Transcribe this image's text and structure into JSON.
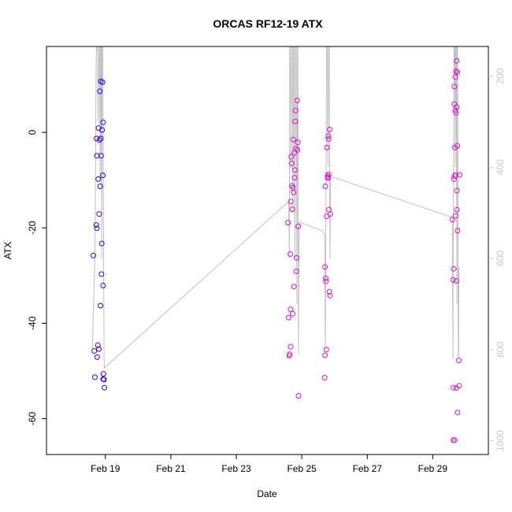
{
  "chart_data": {
    "type": "scatter",
    "title": "ORCAS RF12-19 ATX",
    "xlabel": "Date",
    "ylabel": "ATX",
    "x_ticks": [
      "Feb 19",
      "Feb 21",
      "Feb 23",
      "Feb 25",
      "Feb 27",
      "Feb 29"
    ],
    "x_tick_days": [
      19,
      21,
      23,
      25,
      27,
      29
    ],
    "xlim_days": [
      17.2,
      30.7
    ],
    "ylim": [
      -67.5,
      18
    ],
    "y_ticks": [
      0,
      -20,
      -40,
      -60
    ],
    "right_axis": {
      "label": "",
      "color": "#c8c8c8",
      "ticks": [
        200,
        400,
        600,
        800,
        1000
      ],
      "lim": [
        1030,
        135
      ]
    },
    "points": [
      {
        "x": 18.63,
        "y": -25.8
      },
      {
        "x": 18.66,
        "y": -45.8
      },
      {
        "x": 18.68,
        "y": -51.3
      },
      {
        "x": 18.72,
        "y": -19.4
      },
      {
        "x": 18.73,
        "y": -1.3
      },
      {
        "x": 18.74,
        "y": -4.9
      },
      {
        "x": 18.74,
        "y": -20.1
      },
      {
        "x": 18.75,
        "y": -47.1
      },
      {
        "x": 18.77,
        "y": -44.6
      },
      {
        "x": 18.78,
        "y": -9.8
      },
      {
        "x": 18.79,
        "y": 0.9
      },
      {
        "x": 18.8,
        "y": -45.4
      },
      {
        "x": 18.81,
        "y": -17.1
      },
      {
        "x": 18.82,
        "y": -1.6
      },
      {
        "x": 18.83,
        "y": 8.6
      },
      {
        "x": 18.84,
        "y": -11.3
      },
      {
        "x": 18.85,
        "y": -36.3
      },
      {
        "x": 18.86,
        "y": -1.3
      },
      {
        "x": 18.86,
        "y": 10.7
      },
      {
        "x": 18.87,
        "y": -4.9
      },
      {
        "x": 18.88,
        "y": -29.7
      },
      {
        "x": 18.89,
        "y": -23.3
      },
      {
        "x": 18.9,
        "y": 0.5
      },
      {
        "x": 18.91,
        "y": 10.5
      },
      {
        "x": 18.92,
        "y": -9.0
      },
      {
        "x": 18.93,
        "y": 2.1
      },
      {
        "x": 18.93,
        "y": -32.1
      },
      {
        "x": 18.93,
        "y": -51.7
      },
      {
        "x": 18.94,
        "y": -50.6
      },
      {
        "x": 18.96,
        "y": -51.8
      },
      {
        "x": 18.97,
        "y": -53.5
      },
      {
        "x": 24.58,
        "y": -18.9
      },
      {
        "x": 24.6,
        "y": -38.8
      },
      {
        "x": 24.62,
        "y": -46.8
      },
      {
        "x": 24.63,
        "y": -46.5
      },
      {
        "x": 24.65,
        "y": -25.5
      },
      {
        "x": 24.66,
        "y": -37.1
      },
      {
        "x": 24.66,
        "y": -44.9
      },
      {
        "x": 24.67,
        "y": -14.5
      },
      {
        "x": 24.68,
        "y": -5.1
      },
      {
        "x": 24.69,
        "y": -6.5
      },
      {
        "x": 24.7,
        "y": -11.2
      },
      {
        "x": 24.71,
        "y": -16.1
      },
      {
        "x": 24.72,
        "y": -38.0
      },
      {
        "x": 24.73,
        "y": -11.6
      },
      {
        "x": 24.74,
        "y": -1.5
      },
      {
        "x": 24.75,
        "y": -12.6
      },
      {
        "x": 24.76,
        "y": -32.3
      },
      {
        "x": 24.77,
        "y": -4.3
      },
      {
        "x": 24.78,
        "y": -9.5
      },
      {
        "x": 24.79,
        "y": -7.9
      },
      {
        "x": 24.8,
        "y": 2.3
      },
      {
        "x": 24.81,
        "y": 4.6
      },
      {
        "x": 24.82,
        "y": -3.4
      },
      {
        "x": 24.83,
        "y": -29.1
      },
      {
        "x": 24.84,
        "y": -26.3
      },
      {
        "x": 24.86,
        "y": 6.7
      },
      {
        "x": 24.87,
        "y": -3.7
      },
      {
        "x": 24.88,
        "y": -2.1
      },
      {
        "x": 24.89,
        "y": -19.7
      },
      {
        "x": 24.9,
        "y": -55.2
      },
      {
        "x": 25.7,
        "y": -51.4
      },
      {
        "x": 25.71,
        "y": -46.7
      },
      {
        "x": 25.71,
        "y": -28.2
      },
      {
        "x": 25.72,
        "y": -11.3
      },
      {
        "x": 25.73,
        "y": -30.6
      },
      {
        "x": 25.74,
        "y": -31.2
      },
      {
        "x": 25.75,
        "y": -45.5
      },
      {
        "x": 25.76,
        "y": -17.6
      },
      {
        "x": 25.77,
        "y": -3.2
      },
      {
        "x": 25.79,
        "y": -9.1
      },
      {
        "x": 25.8,
        "y": -9.4
      },
      {
        "x": 25.8,
        "y": -9.6
      },
      {
        "x": 25.81,
        "y": -0.8
      },
      {
        "x": 25.82,
        "y": -1.4
      },
      {
        "x": 25.82,
        "y": -8.8
      },
      {
        "x": 25.83,
        "y": -16.2
      },
      {
        "x": 25.84,
        "y": -33.4
      },
      {
        "x": 25.85,
        "y": 0.6
      },
      {
        "x": 25.86,
        "y": -34.2
      },
      {
        "x": 25.87,
        "y": -17.1
      },
      {
        "x": 29.6,
        "y": -18.3
      },
      {
        "x": 29.62,
        "y": -30.9
      },
      {
        "x": 29.63,
        "y": -64.5
      },
      {
        "x": 29.63,
        "y": -53.5
      },
      {
        "x": 29.64,
        "y": -28.6
      },
      {
        "x": 29.65,
        "y": -9.8
      },
      {
        "x": 29.66,
        "y": 9.6
      },
      {
        "x": 29.66,
        "y": 5.9
      },
      {
        "x": 29.67,
        "y": -64.5
      },
      {
        "x": 29.67,
        "y": -9.2
      },
      {
        "x": 29.68,
        "y": -3.2
      },
      {
        "x": 29.69,
        "y": 11.6
      },
      {
        "x": 29.69,
        "y": 4.6
      },
      {
        "x": 29.7,
        "y": -8.9
      },
      {
        "x": 29.7,
        "y": -17.5
      },
      {
        "x": 29.71,
        "y": 12.8
      },
      {
        "x": 29.71,
        "y": 4.1
      },
      {
        "x": 29.72,
        "y": -31.1
      },
      {
        "x": 29.72,
        "y": -53.6
      },
      {
        "x": 29.73,
        "y": 15.0
      },
      {
        "x": 29.73,
        "y": 5.3
      },
      {
        "x": 29.74,
        "y": -12.2
      },
      {
        "x": 29.74,
        "y": -16.2
      },
      {
        "x": 29.75,
        "y": 12.6
      },
      {
        "x": 29.75,
        "y": -2.8
      },
      {
        "x": 29.76,
        "y": -20.6
      },
      {
        "x": 29.76,
        "y": -58.7
      },
      {
        "x": 29.8,
        "y": -47.8
      },
      {
        "x": 29.81,
        "y": -53.1
      },
      {
        "x": 29.82,
        "y": -8.9
      }
    ],
    "overlay_line": {
      "color": "#c0c0c0",
      "axis": "right",
      "points": [
        [
          18.6,
          800
        ],
        [
          18.68,
          600
        ],
        [
          18.72,
          150
        ],
        [
          18.74,
          135
        ],
        [
          18.76,
          135
        ],
        [
          18.78,
          300
        ],
        [
          18.8,
          135
        ],
        [
          18.82,
          135
        ],
        [
          18.84,
          430
        ],
        [
          18.85,
          135
        ],
        [
          18.87,
          135
        ],
        [
          18.89,
          600
        ],
        [
          18.9,
          135
        ],
        [
          18.92,
          135
        ],
        [
          18.94,
          500
        ],
        [
          18.96,
          820
        ],
        [
          18.97,
          840
        ],
        [
          24.6,
          475
        ],
        [
          24.62,
          600
        ],
        [
          24.63,
          135
        ],
        [
          24.65,
          135
        ],
        [
          24.67,
          400
        ],
        [
          24.69,
          135
        ],
        [
          24.71,
          135
        ],
        [
          24.73,
          500
        ],
        [
          24.75,
          135
        ],
        [
          24.77,
          135
        ],
        [
          24.79,
          600
        ],
        [
          24.81,
          135
        ],
        [
          24.83,
          135
        ],
        [
          24.85,
          700
        ],
        [
          24.87,
          135
        ],
        [
          24.88,
          135
        ],
        [
          24.9,
          810
        ],
        [
          24.92,
          520
        ],
        [
          25.65,
          540
        ],
        [
          25.7,
          550
        ],
        [
          25.72,
          800
        ],
        [
          25.74,
          400
        ],
        [
          25.76,
          135
        ],
        [
          25.78,
          135
        ],
        [
          25.8,
          400
        ],
        [
          25.82,
          135
        ],
        [
          25.84,
          135
        ],
        [
          25.86,
          600
        ],
        [
          25.88,
          420
        ],
        [
          29.6,
          510
        ],
        [
          29.62,
          820
        ],
        [
          29.63,
          500
        ],
        [
          29.65,
          135
        ],
        [
          29.67,
          135
        ],
        [
          29.69,
          400
        ],
        [
          29.7,
          135
        ],
        [
          29.72,
          135
        ],
        [
          29.74,
          700
        ],
        [
          29.75,
          135
        ],
        [
          29.76,
          135
        ],
        [
          29.78,
          820
        ],
        [
          29.79,
          820
        ],
        [
          29.8,
          620
        ]
      ]
    },
    "point_colors": {
      "early": "#3a00f0",
      "late": "#e010d0"
    }
  }
}
